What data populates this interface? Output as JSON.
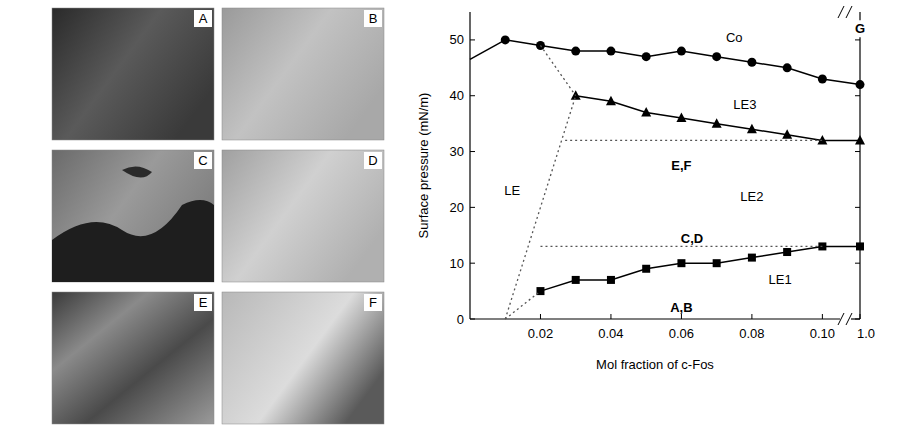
{
  "image_panels": [
    {
      "label": "A"
    },
    {
      "label": "B"
    },
    {
      "label": "C"
    },
    {
      "label": "D"
    },
    {
      "label": "E"
    },
    {
      "label": "F"
    }
  ],
  "chart_data": {
    "type": "line",
    "xlabel": "Mol fraction of c-Fos",
    "ylabel": "Surface pressure (mN/m)",
    "xlim": [
      0,
      1
    ],
    "x_break": [
      0.105,
      1
    ],
    "xticks": [
      0.02,
      0.04,
      0.06,
      0.08,
      {
        "value": 0.1,
        "label": "0.10"
      },
      {
        "value": 1,
        "label": "1.0"
      }
    ],
    "ylim": [
      0,
      55
    ],
    "yticks": [
      0,
      10,
      20,
      30,
      40,
      50
    ],
    "grid": false,
    "series": [
      {
        "x": [
          0.01,
          0.02,
          0.03,
          0.04,
          0.05,
          0.06,
          0.07,
          0.08,
          0.09,
          0.1,
          1
        ],
        "values": [
          50,
          49,
          48,
          48,
          47,
          48,
          47,
          46,
          45,
          43,
          42
        ],
        "marker": "circle",
        "line_style": "solid",
        "color": "#000000"
      },
      {
        "x": [
          0,
          0.01
        ],
        "values": [
          46.5,
          50
        ],
        "marker": "none",
        "line_style": "solid",
        "color": "#000000"
      },
      {
        "x": [
          0.03,
          0.04,
          0.05,
          0.06,
          0.07,
          0.08,
          0.09,
          0.1,
          1
        ],
        "values": [
          40,
          39,
          37,
          36,
          35,
          34,
          33,
          32,
          32
        ],
        "marker": "triangle",
        "line_style": "solid",
        "color": "#000000"
      },
      {
        "x": [
          0.02,
          0.03,
          0.04,
          0.05,
          0.06,
          0.07,
          0.08,
          0.09,
          0.1,
          1
        ],
        "values": [
          5,
          7,
          7,
          9,
          10,
          10,
          11,
          12,
          13,
          13
        ],
        "marker": "square",
        "line_style": "solid",
        "color": "#000000"
      },
      {
        "x": [
          0.01,
          0.03
        ],
        "values": [
          0,
          40
        ],
        "marker": "none",
        "line_style": "dotted",
        "color": "#555555"
      },
      {
        "x": [
          0.02,
          0.03
        ],
        "values": [
          49,
          40
        ],
        "marker": "none",
        "line_style": "dotted",
        "color": "#555555"
      },
      {
        "x": [
          0.01,
          0.02
        ],
        "values": [
          0,
          5
        ],
        "marker": "none",
        "line_style": "dotted",
        "color": "#555555"
      },
      {
        "x": [
          0.027,
          0.1
        ],
        "values": [
          32,
          32
        ],
        "marker": "none",
        "line_style": "dotted",
        "color": "#555555"
      },
      {
        "x": [
          0.02,
          0.1
        ],
        "values": [
          13,
          13
        ],
        "marker": "none",
        "line_style": "dotted",
        "color": "#555555"
      }
    ],
    "annotations": [
      {
        "text": "Co",
        "x": 0.075,
        "y": 50.5
      },
      {
        "text": "LE3",
        "x": 0.078,
        "y": 38.5
      },
      {
        "text": "LE2",
        "x": 0.08,
        "y": 22
      },
      {
        "text": "LE1",
        "x": 0.088,
        "y": 7
      },
      {
        "text": "LE",
        "x": 0.012,
        "y": 23
      },
      {
        "text": "E,F",
        "x": 0.06,
        "y": 27.5
      },
      {
        "text": "C,D",
        "x": 0.063,
        "y": 14.5
      },
      {
        "text": "A,B",
        "x": 0.06,
        "y": 2
      },
      {
        "text": "G",
        "x": 1,
        "y": 52
      }
    ]
  }
}
